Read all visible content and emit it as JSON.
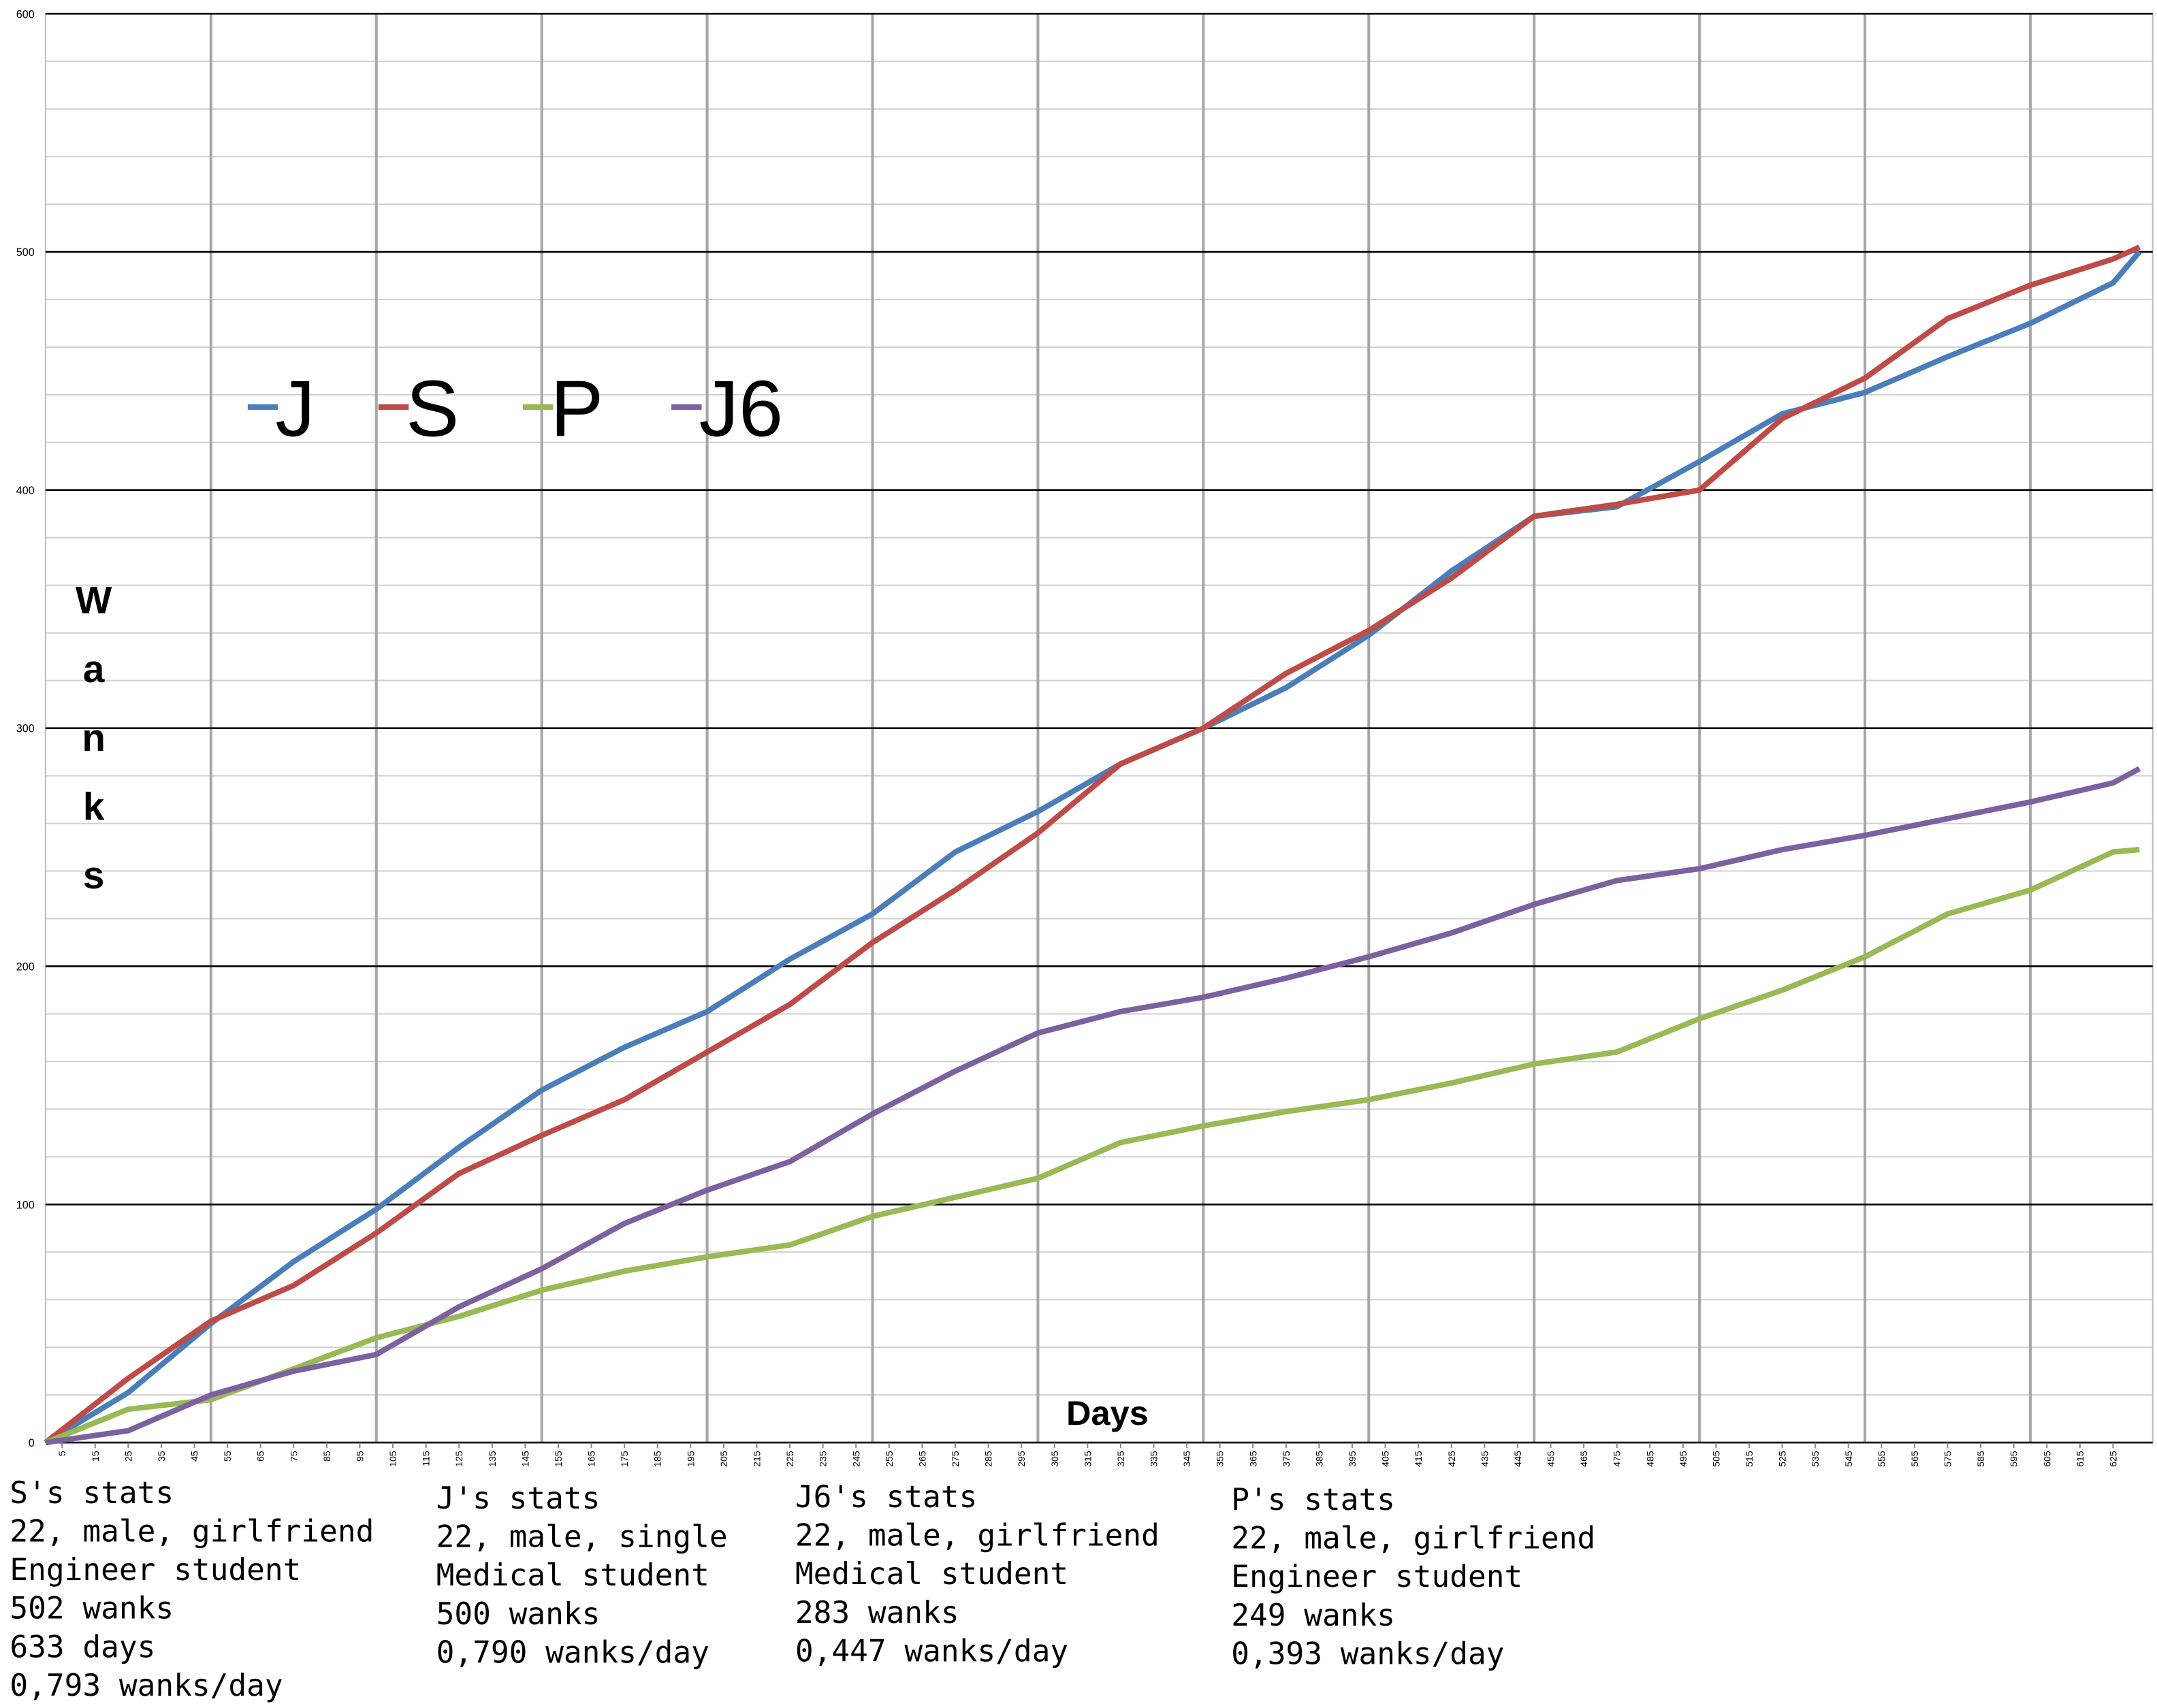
{
  "chart_data": {
    "type": "line",
    "x_label": "Days",
    "y_label": "Wanks",
    "x": [
      0,
      25,
      50,
      75,
      100,
      125,
      150,
      175,
      200,
      225,
      250,
      275,
      300,
      325,
      350,
      375,
      400,
      425,
      450,
      475,
      500,
      525,
      550,
      575,
      600,
      625,
      633
    ],
    "series": [
      {
        "name": "J",
        "color": "#4a7ebb",
        "values": [
          0,
          21,
          50,
          76,
          98,
          124,
          148,
          166,
          181,
          203,
          222,
          248,
          265,
          285,
          300,
          317,
          339,
          366,
          389,
          393,
          412,
          432,
          441,
          456,
          470,
          487,
          500
        ]
      },
      {
        "name": "S",
        "color": "#be4b48",
        "values": [
          0,
          27,
          51,
          66,
          88,
          113,
          129,
          144,
          164,
          184,
          210,
          232,
          256,
          285,
          300,
          323,
          341,
          363,
          389,
          394,
          400,
          430,
          447,
          472,
          486,
          497,
          502
        ]
      },
      {
        "name": "P",
        "color": "#98b954",
        "values": [
          0,
          14,
          18,
          31,
          44,
          53,
          64,
          72,
          78,
          83,
          95,
          103,
          111,
          126,
          133,
          139,
          144,
          151,
          159,
          164,
          178,
          190,
          204,
          222,
          232,
          248,
          249
        ]
      },
      {
        "name": "J6",
        "color": "#7d60a0",
        "values": [
          0,
          5,
          20,
          30,
          37,
          57,
          73,
          92,
          106,
          118,
          138,
          156,
          172,
          181,
          187,
          195,
          204,
          214,
          226,
          236,
          241,
          249,
          255,
          262,
          269,
          277,
          283
        ]
      }
    ],
    "xlim": [
      0,
      637
    ],
    "ylim": [
      0,
      600
    ],
    "yticks": [
      0,
      100,
      200,
      300,
      400,
      500,
      600
    ],
    "xticks": [
      5,
      15,
      25,
      35,
      45,
      55,
      65,
      75,
      85,
      95,
      105,
      115,
      125,
      135,
      145,
      155,
      165,
      175,
      185,
      195,
      205,
      215,
      225,
      235,
      245,
      255,
      265,
      275,
      285,
      295,
      305,
      315,
      325,
      335,
      345,
      355,
      365,
      375,
      385,
      395,
      405,
      415,
      425,
      435,
      445,
      455,
      465,
      475,
      485,
      495,
      505,
      515,
      525,
      535,
      545,
      555,
      565,
      575,
      585,
      595,
      605,
      615,
      625
    ],
    "xgrid": [
      50,
      100,
      150,
      200,
      250,
      300,
      350,
      400,
      450,
      500,
      550,
      600
    ],
    "y_minor_step": 20,
    "legend": "top-left",
    "grid": true
  },
  "stats": [
    {
      "title": "S's stats",
      "lines": [
        "22, male, girlfriend",
        "Engineer student",
        "502 wanks",
        "633 days",
        "0,793 wanks/day"
      ]
    },
    {
      "title": "J's stats",
      "lines": [
        "22, male, single",
        "Medical student",
        "500 wanks",
        "0,790 wanks/day"
      ]
    },
    {
      "title": "J6's stats",
      "lines": [
        "22, male, girlfriend",
        "Medical student",
        "283 wanks",
        "0,447 wanks/day"
      ]
    },
    {
      "title": "P's stats",
      "lines": [
        "22, male, girlfriend",
        "Engineer student",
        "249 wanks",
        "0,393 wanks/day"
      ]
    }
  ]
}
